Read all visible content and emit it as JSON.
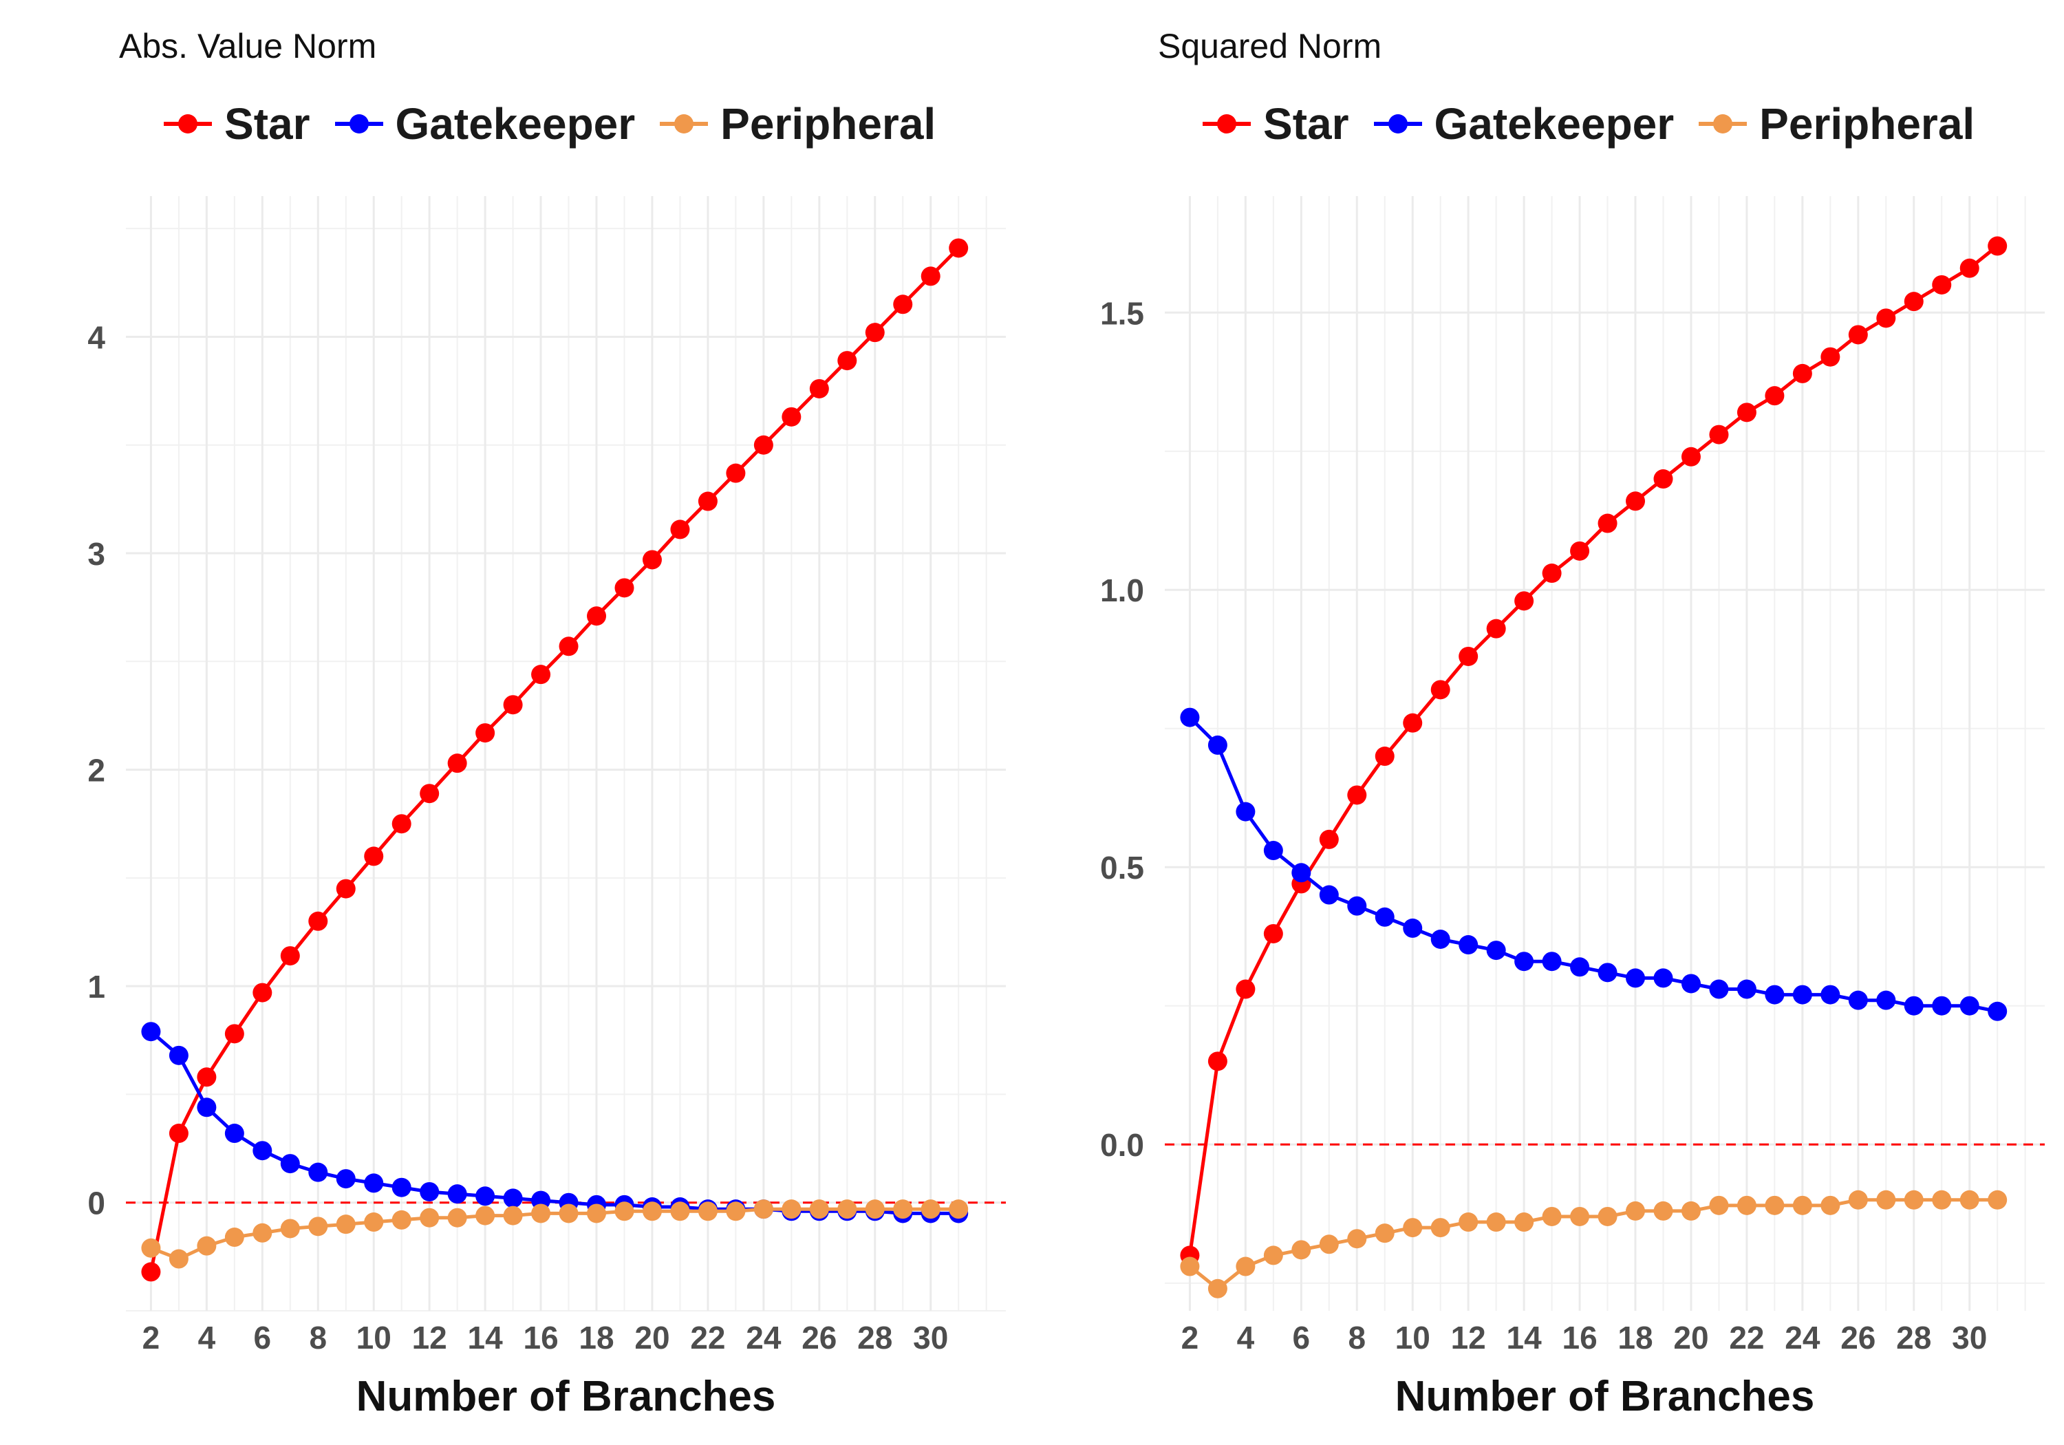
{
  "chart_data": [
    {
      "type": "line",
      "title": "Abs. Value Norm",
      "xlabel": "Number of Branches",
      "ylabel": "",
      "x": [
        2,
        3,
        4,
        5,
        6,
        7,
        8,
        9,
        10,
        11,
        12,
        13,
        14,
        15,
        16,
        17,
        18,
        19,
        20,
        21,
        22,
        23,
        24,
        25,
        26,
        27,
        28,
        29,
        30,
        31
      ],
      "xticks": [
        2,
        4,
        6,
        8,
        10,
        12,
        14,
        16,
        18,
        20,
        22,
        24,
        26,
        28,
        30
      ],
      "xlim": [
        1.1,
        32.7
      ],
      "yticks": [
        0,
        1,
        2,
        3,
        4
      ],
      "ylim": [
        -0.5,
        4.65
      ],
      "reference_line": 0,
      "grid": true,
      "legend": "top",
      "series": [
        {
          "name": "Star",
          "color": "#ff0000",
          "values": [
            -0.32,
            0.32,
            0.58,
            0.78,
            0.97,
            1.14,
            1.3,
            1.45,
            1.6,
            1.75,
            1.89,
            2.03,
            2.17,
            2.3,
            2.44,
            2.57,
            2.71,
            2.84,
            2.97,
            3.11,
            3.24,
            3.37,
            3.5,
            3.63,
            3.76,
            3.89,
            4.02,
            4.15,
            4.28,
            4.41
          ]
        },
        {
          "name": "Gatekeeper",
          "color": "#0000ff",
          "values": [
            0.79,
            0.68,
            0.44,
            0.32,
            0.24,
            0.18,
            0.14,
            0.11,
            0.09,
            0.07,
            0.05,
            0.04,
            0.03,
            0.02,
            0.01,
            0.0,
            -0.01,
            -0.01,
            -0.02,
            -0.02,
            -0.03,
            -0.03,
            -0.03,
            -0.04,
            -0.04,
            -0.04,
            -0.04,
            -0.05,
            -0.05,
            -0.05
          ]
        },
        {
          "name": "Peripheral",
          "color": "#f0984b",
          "values": [
            -0.21,
            -0.26,
            -0.2,
            -0.16,
            -0.14,
            -0.12,
            -0.11,
            -0.1,
            -0.09,
            -0.08,
            -0.07,
            -0.07,
            -0.06,
            -0.06,
            -0.05,
            -0.05,
            -0.05,
            -0.04,
            -0.04,
            -0.04,
            -0.04,
            -0.04,
            -0.03,
            -0.03,
            -0.03,
            -0.03,
            -0.03,
            -0.03,
            -0.03,
            -0.03
          ]
        }
      ]
    },
    {
      "type": "line",
      "title": "Squared Norm",
      "xlabel": "Number of Branches",
      "ylabel": "",
      "x": [
        2,
        3,
        4,
        5,
        6,
        7,
        8,
        9,
        10,
        11,
        12,
        13,
        14,
        15,
        16,
        17,
        18,
        19,
        20,
        21,
        22,
        23,
        24,
        25,
        26,
        27,
        28,
        29,
        30,
        31
      ],
      "xticks": [
        2,
        4,
        6,
        8,
        10,
        12,
        14,
        16,
        18,
        20,
        22,
        24,
        26,
        28,
        30
      ],
      "xlim": [
        1.1,
        32.7
      ],
      "yticks": [
        0.0,
        0.5,
        1.0,
        1.5
      ],
      "ytick_labels": [
        "0.0",
        "0.5",
        "1.0",
        "1.5"
      ],
      "ylim": [
        -0.3,
        1.71
      ],
      "reference_line": 0,
      "grid": true,
      "legend": "top",
      "series": [
        {
          "name": "Star",
          "color": "#ff0000",
          "values": [
            -0.2,
            0.15,
            0.28,
            0.38,
            0.47,
            0.55,
            0.63,
            0.7,
            0.76,
            0.82,
            0.88,
            0.93,
            0.98,
            1.03,
            1.07,
            1.12,
            1.16,
            1.2,
            1.24,
            1.28,
            1.32,
            1.35,
            1.39,
            1.42,
            1.46,
            1.49,
            1.52,
            1.55,
            1.58,
            1.62
          ]
        },
        {
          "name": "Gatekeeper",
          "color": "#0000ff",
          "values": [
            0.77,
            0.72,
            0.6,
            0.53,
            0.49,
            0.45,
            0.43,
            0.41,
            0.39,
            0.37,
            0.36,
            0.35,
            0.33,
            0.33,
            0.32,
            0.31,
            0.3,
            0.3,
            0.29,
            0.28,
            0.28,
            0.27,
            0.27,
            0.27,
            0.26,
            0.26,
            0.25,
            0.25,
            0.25,
            0.24
          ]
        },
        {
          "name": "Peripheral",
          "color": "#f0984b",
          "values": [
            -0.22,
            -0.26,
            -0.22,
            -0.2,
            -0.19,
            -0.18,
            -0.17,
            -0.16,
            -0.15,
            -0.15,
            -0.14,
            -0.14,
            -0.14,
            -0.13,
            -0.13,
            -0.13,
            -0.12,
            -0.12,
            -0.12,
            -0.11,
            -0.11,
            -0.11,
            -0.11,
            -0.11,
            -0.1,
            -0.1,
            -0.1,
            -0.1,
            -0.1,
            -0.1
          ]
        }
      ]
    }
  ]
}
